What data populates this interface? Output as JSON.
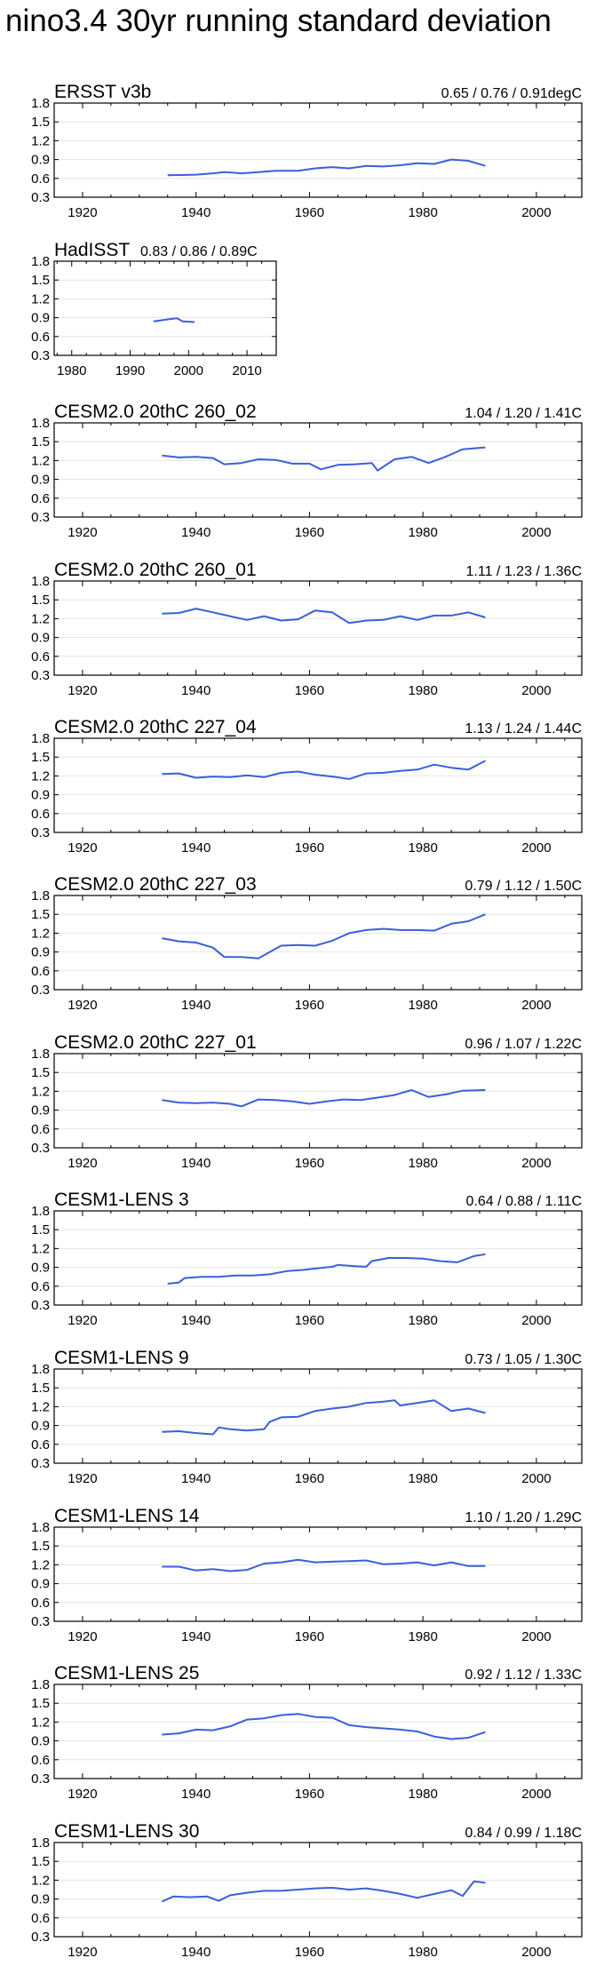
{
  "title": "nino3.4 30yr running standard deviation",
  "colors": {
    "line": "#3a5fd9",
    "axis": "#000000",
    "grid": "#e4e4e4"
  },
  "chart_data": [
    {
      "type": "line",
      "title": "ERSST v3b",
      "stats": "0.65 / 0.76 / 0.91degC",
      "xlim": [
        1915,
        2008
      ],
      "ylim": [
        0.3,
        1.8
      ],
      "xticks": [
        1920,
        1940,
        1960,
        1980,
        2000
      ],
      "xticklabels": [
        "1920",
        "1940",
        "1960",
        "1980",
        "2000"
      ],
      "yticks": [
        0.3,
        0.6,
        0.9,
        1.2,
        1.5,
        1.8
      ],
      "yticklabels": [
        "0.3",
        "0.6",
        "0.9",
        "1.2",
        "1.5",
        "1.8"
      ],
      "grid": true,
      "x": [
        1935,
        1940,
        1943,
        1945,
        1948,
        1951,
        1954,
        1958,
        1961,
        1964,
        1967,
        1970,
        1973,
        1976,
        1979,
        1982,
        1985,
        1988,
        1991
      ],
      "y": [
        0.65,
        0.66,
        0.68,
        0.7,
        0.68,
        0.7,
        0.72,
        0.72,
        0.76,
        0.78,
        0.76,
        0.8,
        0.79,
        0.81,
        0.84,
        0.83,
        0.9,
        0.88,
        0.8
      ]
    },
    {
      "type": "line",
      "title": "HadISST",
      "stats": "0.83 / 0.86 / 0.89C",
      "xlim": [
        1977,
        2015
      ],
      "ylim": [
        0.3,
        1.8
      ],
      "xticks": [
        1980,
        1990,
        2000,
        2010
      ],
      "xticklabels": [
        "1980",
        "1990",
        "2000",
        "2010"
      ],
      "yticks": [
        0.3,
        0.6,
        0.9,
        1.2,
        1.5,
        1.8
      ],
      "yticklabels": [
        "0.3",
        "0.6",
        "0.9",
        "1.2",
        "1.5",
        "1.8"
      ],
      "grid": true,
      "x": [
        1994,
        1995.5,
        1997,
        1998,
        1999,
        2001
      ],
      "y": [
        0.84,
        0.86,
        0.88,
        0.89,
        0.84,
        0.83
      ]
    },
    {
      "type": "line",
      "title": "CESM2.0 20thC 260_02",
      "stats": "1.04 / 1.20 / 1.41C",
      "xlim": [
        1915,
        2008
      ],
      "ylim": [
        0.3,
        1.8
      ],
      "xticks": [
        1920,
        1940,
        1960,
        1980,
        2000
      ],
      "xticklabels": [
        "1920",
        "1940",
        "1960",
        "1980",
        "2000"
      ],
      "yticks": [
        0.3,
        0.6,
        0.9,
        1.2,
        1.5,
        1.8
      ],
      "yticklabels": [
        "0.3",
        "0.6",
        "0.9",
        "1.2",
        "1.5",
        "1.8"
      ],
      "grid": true,
      "x": [
        1934,
        1937,
        1940,
        1943,
        1945,
        1948,
        1951,
        1954,
        1957,
        1960,
        1962,
        1965,
        1968,
        1971,
        1972,
        1975,
        1978,
        1981,
        1984,
        1987,
        1991
      ],
      "y": [
        1.28,
        1.25,
        1.26,
        1.24,
        1.14,
        1.16,
        1.22,
        1.21,
        1.15,
        1.15,
        1.06,
        1.13,
        1.14,
        1.16,
        1.04,
        1.22,
        1.26,
        1.16,
        1.26,
        1.38,
        1.41
      ]
    },
    {
      "type": "line",
      "title": "CESM2.0 20thC 260_01",
      "stats": "1.11 / 1.23 / 1.36C",
      "xlim": [
        1915,
        2008
      ],
      "ylim": [
        0.3,
        1.8
      ],
      "xticks": [
        1920,
        1940,
        1960,
        1980,
        2000
      ],
      "xticklabels": [
        "1920",
        "1940",
        "1960",
        "1980",
        "2000"
      ],
      "yticks": [
        0.3,
        0.6,
        0.9,
        1.2,
        1.5,
        1.8
      ],
      "yticklabels": [
        "0.3",
        "0.6",
        "0.9",
        "1.2",
        "1.5",
        "1.8"
      ],
      "grid": true,
      "x": [
        1934,
        1937,
        1940,
        1943,
        1946,
        1949,
        1952,
        1955,
        1958,
        1961,
        1964,
        1967,
        1970,
        1973,
        1976,
        1979,
        1982,
        1985,
        1988,
        1991
      ],
      "y": [
        1.28,
        1.29,
        1.36,
        1.3,
        1.24,
        1.18,
        1.24,
        1.17,
        1.19,
        1.33,
        1.3,
        1.13,
        1.17,
        1.18,
        1.24,
        1.18,
        1.25,
        1.25,
        1.3,
        1.22
      ]
    },
    {
      "type": "line",
      "title": "CESM2.0 20thC 227_04",
      "stats": "1.13 / 1.24 / 1.44C",
      "xlim": [
        1915,
        2008
      ],
      "ylim": [
        0.3,
        1.8
      ],
      "xticks": [
        1920,
        1940,
        1960,
        1980,
        2000
      ],
      "xticklabels": [
        "1920",
        "1940",
        "1960",
        "1980",
        "2000"
      ],
      "yticks": [
        0.3,
        0.6,
        0.9,
        1.2,
        1.5,
        1.8
      ],
      "yticklabels": [
        "0.3",
        "0.6",
        "0.9",
        "1.2",
        "1.5",
        "1.8"
      ],
      "grid": true,
      "x": [
        1934,
        1937,
        1940,
        1943,
        1946,
        1949,
        1952,
        1955,
        1958,
        1961,
        1964,
        1967,
        1970,
        1973,
        1976,
        1979,
        1982,
        1985,
        1988,
        1991
      ],
      "y": [
        1.23,
        1.24,
        1.17,
        1.19,
        1.18,
        1.21,
        1.18,
        1.25,
        1.27,
        1.22,
        1.19,
        1.15,
        1.24,
        1.25,
        1.28,
        1.3,
        1.38,
        1.33,
        1.3,
        1.44
      ]
    },
    {
      "type": "line",
      "title": "CESM2.0 20thC 227_03",
      "stats": "0.79 / 1.12 / 1.50C",
      "xlim": [
        1915,
        2008
      ],
      "ylim": [
        0.3,
        1.8
      ],
      "xticks": [
        1920,
        1940,
        1960,
        1980,
        2000
      ],
      "xticklabels": [
        "1920",
        "1940",
        "1960",
        "1980",
        "2000"
      ],
      "yticks": [
        0.3,
        0.6,
        0.9,
        1.2,
        1.5,
        1.8
      ],
      "yticklabels": [
        "0.3",
        "0.6",
        "0.9",
        "1.2",
        "1.5",
        "1.8"
      ],
      "grid": true,
      "x": [
        1934,
        1937,
        1940,
        1943,
        1945,
        1948,
        1951,
        1953,
        1955,
        1958,
        1961,
        1964,
        1967,
        1970,
        1973,
        1976,
        1979,
        1982,
        1985,
        1988,
        1991
      ],
      "y": [
        1.12,
        1.07,
        1.05,
        0.97,
        0.82,
        0.82,
        0.8,
        0.9,
        1.0,
        1.01,
        1.0,
        1.08,
        1.2,
        1.25,
        1.27,
        1.25,
        1.25,
        1.24,
        1.35,
        1.39,
        1.5
      ]
    },
    {
      "type": "line",
      "title": "CESM2.0 20thC 227_01",
      "stats": "0.96 / 1.07 / 1.22C",
      "xlim": [
        1915,
        2008
      ],
      "ylim": [
        0.3,
        1.8
      ],
      "xticks": [
        1920,
        1940,
        1960,
        1980,
        2000
      ],
      "xticklabels": [
        "1920",
        "1940",
        "1960",
        "1980",
        "2000"
      ],
      "yticks": [
        0.3,
        0.6,
        0.9,
        1.2,
        1.5,
        1.8
      ],
      "yticklabels": [
        "0.3",
        "0.6",
        "0.9",
        "1.2",
        "1.5",
        "1.8"
      ],
      "grid": true,
      "x": [
        1934,
        1937,
        1940,
        1943,
        1946,
        1948,
        1951,
        1954,
        1957,
        1960,
        1963,
        1966,
        1969,
        1972,
        1975,
        1978,
        1981,
        1984,
        1987,
        1991
      ],
      "y": [
        1.06,
        1.02,
        1.01,
        1.02,
        1.0,
        0.96,
        1.07,
        1.06,
        1.04,
        1.0,
        1.04,
        1.07,
        1.06,
        1.1,
        1.14,
        1.22,
        1.11,
        1.15,
        1.21,
        1.22
      ]
    },
    {
      "type": "line",
      "title": "CESM1-LENS 3",
      "stats": "0.64 / 0.88 / 1.11C",
      "xlim": [
        1915,
        2008
      ],
      "ylim": [
        0.3,
        1.8
      ],
      "xticks": [
        1920,
        1940,
        1960,
        1980,
        2000
      ],
      "xticklabels": [
        "1920",
        "1940",
        "1960",
        "1980",
        "2000"
      ],
      "yticks": [
        0.3,
        0.6,
        0.9,
        1.2,
        1.5,
        1.8
      ],
      "yticklabels": [
        "0.3",
        "0.6",
        "0.9",
        "1.2",
        "1.5",
        "1.8"
      ],
      "grid": true,
      "x": [
        1935,
        1937,
        1938,
        1941,
        1944,
        1947,
        1950,
        1953,
        1956,
        1959,
        1962,
        1964,
        1965,
        1968,
        1970,
        1971,
        1974,
        1977,
        1980,
        1983,
        1986,
        1989,
        1991
      ],
      "y": [
        0.64,
        0.66,
        0.73,
        0.75,
        0.75,
        0.77,
        0.77,
        0.79,
        0.84,
        0.86,
        0.89,
        0.91,
        0.94,
        0.92,
        0.91,
        1.0,
        1.05,
        1.05,
        1.04,
        1.0,
        0.98,
        1.08,
        1.11
      ]
    },
    {
      "type": "line",
      "title": "CESM1-LENS 9",
      "stats": "0.73 / 1.05 / 1.30C",
      "xlim": [
        1915,
        2008
      ],
      "ylim": [
        0.3,
        1.8
      ],
      "xticks": [
        1920,
        1940,
        1960,
        1980,
        2000
      ],
      "xticklabels": [
        "1920",
        "1940",
        "1960",
        "1980",
        "2000"
      ],
      "yticks": [
        0.3,
        0.6,
        0.9,
        1.2,
        1.5,
        1.8
      ],
      "yticklabels": [
        "0.3",
        "0.6",
        "0.9",
        "1.2",
        "1.5",
        "1.8"
      ],
      "grid": true,
      "x": [
        1934,
        1937,
        1940,
        1943,
        1944,
        1946,
        1949,
        1952,
        1953,
        1955,
        1958,
        1961,
        1964,
        1967,
        1970,
        1973,
        1975,
        1976,
        1979,
        1982,
        1985,
        1988,
        1991
      ],
      "y": [
        0.8,
        0.81,
        0.78,
        0.76,
        0.87,
        0.84,
        0.82,
        0.84,
        0.96,
        1.03,
        1.04,
        1.13,
        1.17,
        1.2,
        1.26,
        1.28,
        1.3,
        1.22,
        1.26,
        1.3,
        1.13,
        1.17,
        1.1
      ]
    },
    {
      "type": "line",
      "title": "CESM1-LENS 14",
      "stats": "1.10 / 1.20 / 1.29C",
      "xlim": [
        1915,
        2008
      ],
      "ylim": [
        0.3,
        1.8
      ],
      "xticks": [
        1920,
        1940,
        1960,
        1980,
        2000
      ],
      "xticklabels": [
        "1920",
        "1940",
        "1960",
        "1980",
        "2000"
      ],
      "yticks": [
        0.3,
        0.6,
        0.9,
        1.2,
        1.5,
        1.8
      ],
      "yticklabels": [
        "0.3",
        "0.6",
        "0.9",
        "1.2",
        "1.5",
        "1.8"
      ],
      "grid": true,
      "x": [
        1934,
        1937,
        1940,
        1943,
        1946,
        1949,
        1952,
        1955,
        1958,
        1961,
        1964,
        1967,
        1970,
        1973,
        1976,
        1979,
        1982,
        1985,
        1988,
        1991
      ],
      "y": [
        1.17,
        1.17,
        1.11,
        1.13,
        1.1,
        1.12,
        1.22,
        1.24,
        1.28,
        1.24,
        1.25,
        1.26,
        1.27,
        1.21,
        1.22,
        1.24,
        1.19,
        1.24,
        1.18,
        1.18
      ]
    },
    {
      "type": "line",
      "title": "CESM1-LENS 25",
      "stats": "0.92 / 1.12 / 1.33C",
      "xlim": [
        1915,
        2008
      ],
      "ylim": [
        0.3,
        1.8
      ],
      "xticks": [
        1920,
        1940,
        1960,
        1980,
        2000
      ],
      "xticklabels": [
        "1920",
        "1940",
        "1960",
        "1980",
        "2000"
      ],
      "yticks": [
        0.3,
        0.6,
        0.9,
        1.2,
        1.5,
        1.8
      ],
      "yticklabels": [
        "0.3",
        "0.6",
        "0.9",
        "1.2",
        "1.5",
        "1.8"
      ],
      "grid": true,
      "x": [
        1934,
        1937,
        1940,
        1943,
        1946,
        1949,
        1952,
        1955,
        1958,
        1961,
        1964,
        1967,
        1970,
        1973,
        1976,
        1979,
        1982,
        1985,
        1988,
        1991
      ],
      "y": [
        1.0,
        1.02,
        1.08,
        1.07,
        1.13,
        1.24,
        1.26,
        1.31,
        1.33,
        1.28,
        1.27,
        1.15,
        1.12,
        1.1,
        1.08,
        1.05,
        0.97,
        0.93,
        0.95,
        1.04
      ]
    },
    {
      "type": "line",
      "title": "CESM1-LENS 30",
      "stats": "0.84 / 0.99 / 1.18C",
      "xlim": [
        1915,
        2008
      ],
      "ylim": [
        0.3,
        1.8
      ],
      "xticks": [
        1920,
        1940,
        1960,
        1980,
        2000
      ],
      "xticklabels": [
        "1920",
        "1940",
        "1960",
        "1980",
        "2000"
      ],
      "yticks": [
        0.3,
        0.6,
        0.9,
        1.2,
        1.5,
        1.8
      ],
      "yticklabels": [
        "0.3",
        "0.6",
        "0.9",
        "1.2",
        "1.5",
        "1.8"
      ],
      "grid": true,
      "x": [
        1934,
        1936,
        1939,
        1942,
        1944,
        1946,
        1949,
        1952,
        1955,
        1958,
        1961,
        1964,
        1967,
        1970,
        1973,
        1976,
        1979,
        1982,
        1985,
        1987,
        1989,
        1991
      ],
      "y": [
        0.86,
        0.94,
        0.93,
        0.94,
        0.87,
        0.96,
        1.0,
        1.03,
        1.03,
        1.05,
        1.07,
        1.08,
        1.05,
        1.07,
        1.03,
        0.98,
        0.92,
        0.98,
        1.04,
        0.95,
        1.18,
        1.16
      ]
    }
  ]
}
